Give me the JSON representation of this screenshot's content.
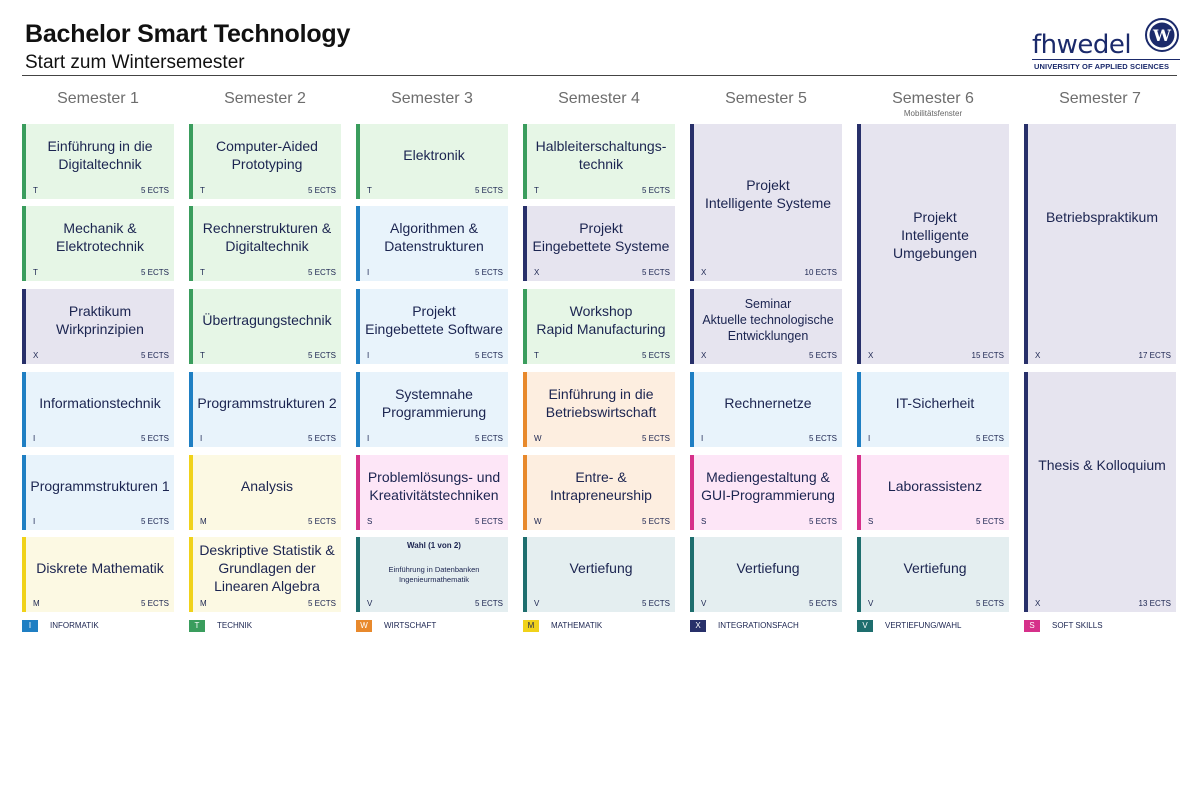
{
  "header": {
    "title": "Bachelor Smart Technology",
    "subtitle": "Start zum Wintersemester"
  },
  "logo": {
    "wordmark": "fhwedel",
    "emblem_letter": "W",
    "tagline": "UNIVERSITY OF APPLIED SCIENCES"
  },
  "semesters": [
    {
      "label": "Semester 1",
      "note": ""
    },
    {
      "label": "Semester 2",
      "note": ""
    },
    {
      "label": "Semester 3",
      "note": ""
    },
    {
      "label": "Semester 4",
      "note": ""
    },
    {
      "label": "Semester 5",
      "note": ""
    },
    {
      "label": "Semester 6",
      "note": "Mobilitätsfenster"
    },
    {
      "label": "Semester 7",
      "note": ""
    }
  ],
  "categories": {
    "I": {
      "label": "INFORMATIK",
      "color": "#1f7fc3",
      "bg": "#e8f3fb"
    },
    "T": {
      "label": "TECHNIK",
      "color": "#3a9d5d",
      "bg": "#e6f6e6"
    },
    "W": {
      "label": "WIRTSCHAFT",
      "color": "#e8892c",
      "bg": "#fdeee0"
    },
    "M": {
      "label": "MATHEMATIK",
      "color": "#f0d21a",
      "bg": "#fcf9e3"
    },
    "X": {
      "label": "INTEGRATIONSFACH",
      "color": "#28306a",
      "bg": "#e6e4ef"
    },
    "V": {
      "label": "VERTIEFUNG/WAHL",
      "color": "#1e6e6e",
      "bg": "#e4eef0"
    },
    "S": {
      "label": "SOFT SKILLS",
      "color": "#d6308a",
      "bg": "#fde6f7"
    }
  },
  "legend_order": [
    "I",
    "T",
    "W",
    "M",
    "X",
    "V",
    "S"
  ],
  "modules": [
    {
      "sem": 0,
      "row": 0,
      "span": 1,
      "name": "Einführung in die\nDigitaltechnik",
      "code": "T",
      "ects": "5 ECTS"
    },
    {
      "sem": 0,
      "row": 1,
      "span": 1,
      "name": "Mechanik &\nElektrotechnik",
      "code": "T",
      "ects": "5 ECTS"
    },
    {
      "sem": 0,
      "row": 2,
      "span": 1,
      "name": "Praktikum\nWirkprinzipien",
      "code": "X",
      "ects": "5 ECTS"
    },
    {
      "sem": 0,
      "row": 3,
      "span": 1,
      "name": "Informationstechnik",
      "code": "I",
      "ects": "5 ECTS"
    },
    {
      "sem": 0,
      "row": 4,
      "span": 1,
      "name": "Programmstrukturen 1",
      "code": "I",
      "ects": "5 ECTS"
    },
    {
      "sem": 0,
      "row": 5,
      "span": 1,
      "name": "Diskrete Mathematik",
      "code": "M",
      "ects": "5 ECTS"
    },
    {
      "sem": 1,
      "row": 0,
      "span": 1,
      "name": "Computer-Aided\nPrototyping",
      "code": "T",
      "ects": "5 ECTS"
    },
    {
      "sem": 1,
      "row": 1,
      "span": 1,
      "name": "Rechnerstrukturen &\nDigitaltechnik",
      "code": "T",
      "ects": "5 ECTS"
    },
    {
      "sem": 1,
      "row": 2,
      "span": 1,
      "name": "Übertragungstechnik",
      "code": "T",
      "ects": "5 ECTS"
    },
    {
      "sem": 1,
      "row": 3,
      "span": 1,
      "name": "Programmstrukturen 2",
      "code": "I",
      "ects": "5 ECTS"
    },
    {
      "sem": 1,
      "row": 4,
      "span": 1,
      "name": "Analysis",
      "code": "M",
      "ects": "5 ECTS"
    },
    {
      "sem": 1,
      "row": 5,
      "span": 1,
      "name": "Deskriptive Statistik &\nGrundlagen der\nLinearen Algebra",
      "code": "M",
      "ects": "5 ECTS"
    },
    {
      "sem": 2,
      "row": 0,
      "span": 1,
      "name": "Elektronik",
      "code": "T",
      "ects": "5 ECTS"
    },
    {
      "sem": 2,
      "row": 1,
      "span": 1,
      "name": "Algorithmen &\nDatenstrukturen",
      "code": "I",
      "ects": "5 ECTS"
    },
    {
      "sem": 2,
      "row": 2,
      "span": 1,
      "name": "Projekt\nEingebettete Software",
      "code": "I",
      "ects": "5 ECTS"
    },
    {
      "sem": 2,
      "row": 3,
      "span": 1,
      "name": "Systemnahe\nProgrammierung",
      "code": "I",
      "ects": "5 ECTS"
    },
    {
      "sem": 2,
      "row": 4,
      "span": 1,
      "name": "Problemlösungs- und\nKreativitätstechniken",
      "code": "S",
      "ects": "5 ECTS"
    },
    {
      "sem": 2,
      "row": 5,
      "span": 1,
      "name": "",
      "wahl": "Wahl (1 von 2)",
      "options": "Einführung in Datenbanken\nIngenieurmathematik",
      "code": "V",
      "ects": "5 ECTS"
    },
    {
      "sem": 3,
      "row": 0,
      "span": 1,
      "name": "Halbleiterschaltungs-\ntechnik",
      "code": "T",
      "ects": "5 ECTS"
    },
    {
      "sem": 3,
      "row": 1,
      "span": 1,
      "name": "Projekt\nEingebettete Systeme",
      "code": "X",
      "ects": "5 ECTS"
    },
    {
      "sem": 3,
      "row": 2,
      "span": 1,
      "name": "Workshop\nRapid Manufacturing",
      "code": "T",
      "ects": "5 ECTS"
    },
    {
      "sem": 3,
      "row": 3,
      "span": 1,
      "name": "Einführung in die\nBetriebswirtschaft",
      "code": "W",
      "ects": "5 ECTS"
    },
    {
      "sem": 3,
      "row": 4,
      "span": 1,
      "name": "Entre- &\nIntrapreneurship",
      "code": "W",
      "ects": "5 ECTS"
    },
    {
      "sem": 3,
      "row": 5,
      "span": 1,
      "name": "Vertiefung",
      "code": "V",
      "ects": "5 ECTS"
    },
    {
      "sem": 4,
      "row": 0,
      "span": 2,
      "name": "Projekt\nIntelligente Systeme",
      "code": "X",
      "ects": "10 ECTS"
    },
    {
      "sem": 4,
      "row": 2,
      "span": 1,
      "name": "Seminar\nAktuelle technologische\nEntwicklungen",
      "code": "X",
      "ects": "5 ECTS",
      "small": true
    },
    {
      "sem": 4,
      "row": 3,
      "span": 1,
      "name": "Rechnernetze",
      "code": "I",
      "ects": "5 ECTS"
    },
    {
      "sem": 4,
      "row": 4,
      "span": 1,
      "name": "Mediengestaltung &\nGUI-Programmierung",
      "code": "S",
      "ects": "5 ECTS"
    },
    {
      "sem": 4,
      "row": 5,
      "span": 1,
      "name": "Vertiefung",
      "code": "V",
      "ects": "5 ECTS"
    },
    {
      "sem": 5,
      "row": 0,
      "span": 3,
      "name": "Projekt\nIntelligente\nUmgebungen",
      "code": "X",
      "ects": "15 ECTS"
    },
    {
      "sem": 5,
      "row": 3,
      "span": 1,
      "name": "IT-Sicherheit",
      "code": "I",
      "ects": "5 ECTS"
    },
    {
      "sem": 5,
      "row": 4,
      "span": 1,
      "name": "Laborassistenz",
      "code": "S",
      "ects": "5 ECTS"
    },
    {
      "sem": 5,
      "row": 5,
      "span": 1,
      "name": "Vertiefung",
      "code": "V",
      "ects": "5 ECTS"
    },
    {
      "sem": 6,
      "row": 0,
      "span": 3,
      "name": "Betriebspraktikum",
      "code": "X",
      "ects": "17 ECTS"
    },
    {
      "sem": 6,
      "row": 3,
      "span": 3,
      "name": "Thesis & Kolloquium",
      "code": "X",
      "ects": "13 ECTS"
    }
  ]
}
